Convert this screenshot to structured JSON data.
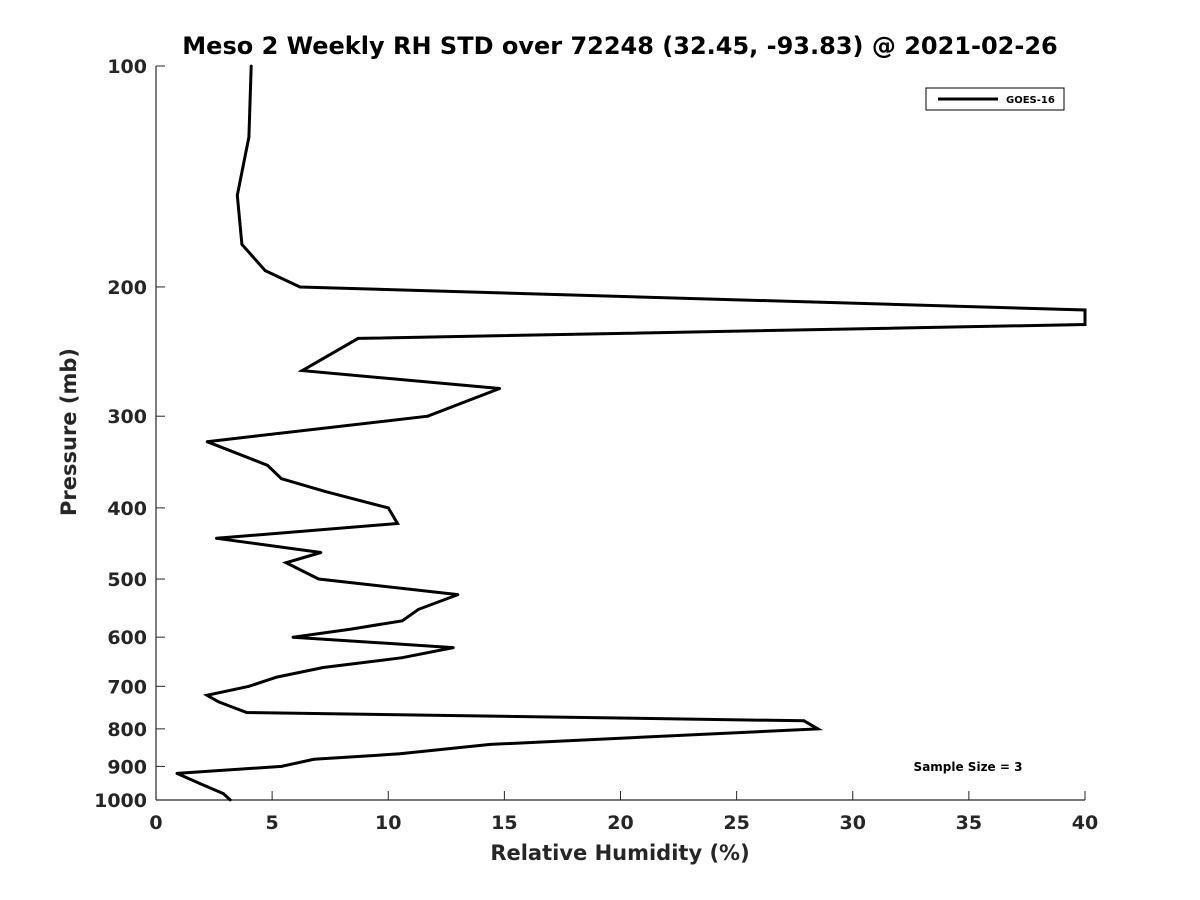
{
  "chart_data": {
    "type": "line",
    "title": "Meso 2 Weekly RH STD over 72248 (32.45, -93.83) @ 2021-02-26",
    "xlabel": "Relative Humidity (%)",
    "ylabel": "Pressure (mb)",
    "xlim": [
      0,
      40
    ],
    "ylim": [
      100,
      1000
    ],
    "y_scale": "log",
    "y_reversed": true,
    "x_ticks": [
      0,
      5,
      10,
      15,
      20,
      25,
      30,
      35,
      40
    ],
    "y_ticks": [
      100,
      200,
      300,
      400,
      500,
      600,
      700,
      800,
      900,
      1000
    ],
    "grid": false,
    "legend_position": "top-right",
    "annotation": "Sample Size = 3",
    "series": [
      {
        "name": "GOES-16",
        "color": "#000000",
        "points": [
          [
            4.1,
            100
          ],
          [
            4.0,
            125
          ],
          [
            3.5,
            150
          ],
          [
            3.7,
            175
          ],
          [
            4.7,
            190
          ],
          [
            6.2,
            200
          ],
          [
            40.0,
            215
          ],
          [
            40.0,
            225
          ],
          [
            8.7,
            235
          ],
          [
            6.3,
            260
          ],
          [
            14.8,
            275
          ],
          [
            11.7,
            300
          ],
          [
            2.2,
            325
          ],
          [
            4.8,
            350
          ],
          [
            5.4,
            365
          ],
          [
            7.3,
            380
          ],
          [
            10.0,
            400
          ],
          [
            10.4,
            420
          ],
          [
            2.6,
            440
          ],
          [
            7.1,
            460
          ],
          [
            5.6,
            475
          ],
          [
            7.0,
            500
          ],
          [
            13.0,
            525
          ],
          [
            11.3,
            550
          ],
          [
            10.6,
            570
          ],
          [
            8.4,
            585
          ],
          [
            5.9,
            600
          ],
          [
            12.8,
            620
          ],
          [
            10.6,
            640
          ],
          [
            7.2,
            660
          ],
          [
            5.2,
            680
          ],
          [
            4.0,
            700
          ],
          [
            2.2,
            720
          ],
          [
            2.7,
            735
          ],
          [
            3.9,
            760
          ],
          [
            27.9,
            780
          ],
          [
            28.5,
            800
          ],
          [
            14.4,
            840
          ],
          [
            10.5,
            865
          ],
          [
            6.8,
            880
          ],
          [
            5.4,
            900
          ],
          [
            0.9,
            920
          ],
          [
            1.9,
            950
          ],
          [
            2.9,
            980
          ],
          [
            3.2,
            1000
          ]
        ]
      }
    ]
  }
}
